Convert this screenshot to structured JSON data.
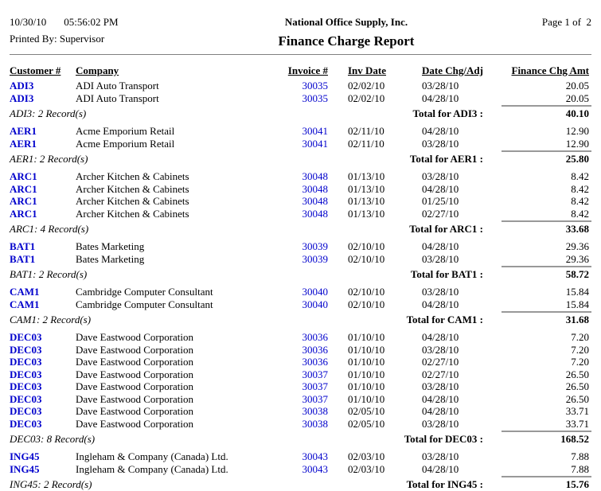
{
  "header": {
    "date": "10/30/10",
    "time": "05:56:02 PM",
    "printed_by": "Printed By: Supervisor",
    "company_name": "National Office Supply, Inc.",
    "report_title": "Finance Charge Report",
    "page_info": "Page 1 of  2"
  },
  "table": {
    "columns": [
      "Customer #",
      "Company",
      "Invoice #",
      "Inv Date",
      "Date Chg/Adj",
      "Finance Chg Amt"
    ],
    "groups": [
      {
        "customer_id": "ADI3",
        "company": "ADI Auto Transport",
        "rows": [
          {
            "invoice": "30035",
            "inv_date": "02/02/10",
            "date_chg": "03/28/10",
            "amount": "20.05"
          },
          {
            "invoice": "30035",
            "inv_date": "02/02/10",
            "date_chg": "04/28/10",
            "amount": "20.05"
          }
        ],
        "record_label": "ADI3: 2 Record(s)",
        "total_label": "Total for ADI3 :",
        "total": "40.10"
      },
      {
        "customer_id": "AER1",
        "company": "Acme Emporium Retail",
        "rows": [
          {
            "invoice": "30041",
            "inv_date": "02/11/10",
            "date_chg": "04/28/10",
            "amount": "12.90"
          },
          {
            "invoice": "30041",
            "inv_date": "02/11/10",
            "date_chg": "03/28/10",
            "amount": "12.90"
          }
        ],
        "record_label": "AER1: 2 Record(s)",
        "total_label": "Total for AER1 :",
        "total": "25.80"
      },
      {
        "customer_id": "ARC1",
        "company": "Archer Kitchen & Cabinets",
        "rows": [
          {
            "invoice": "30048",
            "inv_date": "01/13/10",
            "date_chg": "03/28/10",
            "amount": "8.42"
          },
          {
            "invoice": "30048",
            "inv_date": "01/13/10",
            "date_chg": "04/28/10",
            "amount": "8.42"
          },
          {
            "invoice": "30048",
            "inv_date": "01/13/10",
            "date_chg": "01/25/10",
            "amount": "8.42"
          },
          {
            "invoice": "30048",
            "inv_date": "01/13/10",
            "date_chg": "02/27/10",
            "amount": "8.42"
          }
        ],
        "record_label": "ARC1: 4 Record(s)",
        "total_label": "Total for ARC1 :",
        "total": "33.68"
      },
      {
        "customer_id": "BAT1",
        "company": "Bates Marketing",
        "rows": [
          {
            "invoice": "30039",
            "inv_date": "02/10/10",
            "date_chg": "04/28/10",
            "amount": "29.36"
          },
          {
            "invoice": "30039",
            "inv_date": "02/10/10",
            "date_chg": "03/28/10",
            "amount": "29.36"
          }
        ],
        "record_label": "BAT1: 2 Record(s)",
        "total_label": "Total for BAT1 :",
        "total": "58.72"
      },
      {
        "customer_id": "CAM1",
        "company": "Cambridge Computer Consultant",
        "rows": [
          {
            "invoice": "30040",
            "inv_date": "02/10/10",
            "date_chg": "03/28/10",
            "amount": "15.84"
          },
          {
            "invoice": "30040",
            "inv_date": "02/10/10",
            "date_chg": "04/28/10",
            "amount": "15.84"
          }
        ],
        "record_label": "CAM1: 2 Record(s)",
        "total_label": "Total for CAM1 :",
        "total": "31.68"
      },
      {
        "customer_id": "DEC03",
        "company": "Dave Eastwood Corporation",
        "rows": [
          {
            "invoice": "30036",
            "inv_date": "01/10/10",
            "date_chg": "04/28/10",
            "amount": "7.20"
          },
          {
            "invoice": "30036",
            "inv_date": "01/10/10",
            "date_chg": "03/28/10",
            "amount": "7.20"
          },
          {
            "invoice": "30036",
            "inv_date": "01/10/10",
            "date_chg": "02/27/10",
            "amount": "7.20"
          },
          {
            "invoice": "30037",
            "inv_date": "01/10/10",
            "date_chg": "02/27/10",
            "amount": "26.50"
          },
          {
            "invoice": "30037",
            "inv_date": "01/10/10",
            "date_chg": "03/28/10",
            "amount": "26.50"
          },
          {
            "invoice": "30037",
            "inv_date": "01/10/10",
            "date_chg": "04/28/10",
            "amount": "26.50"
          },
          {
            "invoice": "30038",
            "inv_date": "02/05/10",
            "date_chg": "04/28/10",
            "amount": "33.71"
          },
          {
            "invoice": "30038",
            "inv_date": "02/05/10",
            "date_chg": "03/28/10",
            "amount": "33.71"
          }
        ],
        "record_label": "DEC03: 8 Record(s)",
        "total_label": "Total for DEC03 :",
        "total": "168.52"
      },
      {
        "customer_id": "ING45",
        "company": "Ingleham & Company (Canada) Ltd.",
        "rows": [
          {
            "invoice": "30043",
            "inv_date": "02/03/10",
            "date_chg": "03/28/10",
            "amount": "7.88"
          },
          {
            "invoice": "30043",
            "inv_date": "02/03/10",
            "date_chg": "04/28/10",
            "amount": "7.88"
          }
        ],
        "record_label": "ING45: 2 Record(s)",
        "total_label": "Total for ING45 :",
        "total": "15.76"
      }
    ]
  },
  "colors": {
    "link_blue": "#0000CC",
    "text": "#000000",
    "header_rule_gray": "#808080",
    "total_rule_gray": "#999999",
    "background": "#FFFFFF"
  }
}
